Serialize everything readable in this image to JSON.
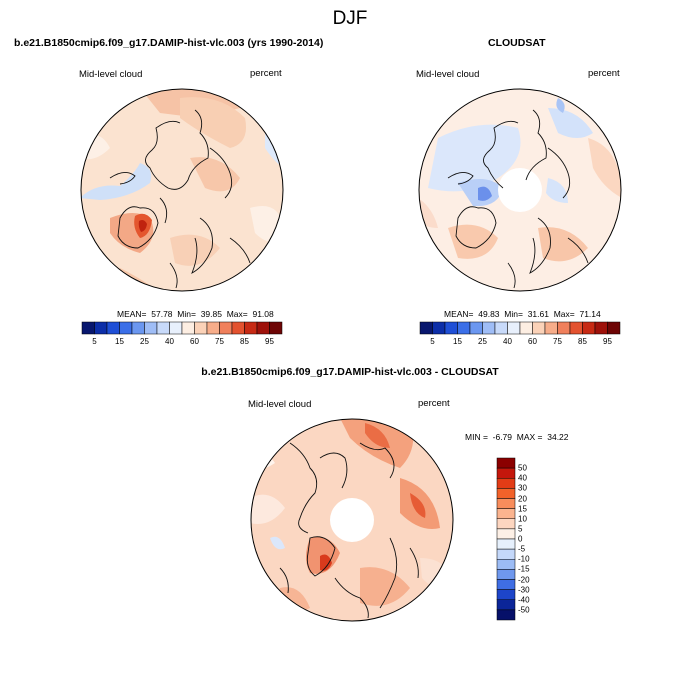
{
  "title": "DJF",
  "panels": {
    "left": {
      "title": "b.e21.B1850cmip6.f09_g17.DAMIP-hist-vlc.003 (yrs 1990-2014)",
      "variable": "Mid-level cloud",
      "units": "percent",
      "stats": {
        "mean_label": "MEAN=",
        "mean": "57.78",
        "min_label": "Min=",
        "min": "39.85",
        "max_label": "Max=",
        "max": "91.08"
      }
    },
    "right": {
      "title": "CLOUDSAT",
      "variable": "Mid-level cloud",
      "units": "percent",
      "stats": {
        "mean_label": "MEAN=",
        "mean": "49.83",
        "min_label": "Min=",
        "min": "31.61",
        "max_label": "Max=",
        "max": "71.14"
      }
    },
    "diff": {
      "title": "b.e21.B1850cmip6.f09_g17.DAMIP-hist-vlc.003 - CLOUDSAT",
      "variable": "Mid-level cloud",
      "units": "percent",
      "stats": {
        "min_label": "MIN =",
        "min": "-6.79",
        "max_label": "MAX =",
        "max": "34.22"
      }
    }
  },
  "colorbar_abs": {
    "labels": [
      "5",
      "15",
      "25",
      "40",
      "60",
      "75",
      "85",
      "95"
    ],
    "colors": [
      "#08176e",
      "#0c2ea8",
      "#1f4fd6",
      "#3b6fe8",
      "#6b97f0",
      "#9fbdf6",
      "#c8dafa",
      "#e8f0fc",
      "#fdeee2",
      "#fbd2b8",
      "#f7ad8a",
      "#f0805c",
      "#e3522f",
      "#c72a14",
      "#9e110a",
      "#6e0505"
    ]
  },
  "colorbar_diff": {
    "labels": [
      "50",
      "40",
      "30",
      "20",
      "15",
      "10",
      "5",
      "0",
      "-5",
      "-10",
      "-15",
      "-20",
      "-30",
      "-40",
      "-50"
    ],
    "colors": [
      "#8b0000",
      "#c4170c",
      "#e23c16",
      "#f2622a",
      "#f88d5c",
      "#fbb48f",
      "#fdd6c0",
      "#fdf0e6",
      "#e6f0fc",
      "#c4d8fa",
      "#9cbcf5",
      "#6f98ee",
      "#3f6ee4",
      "#1d45c9",
      "#0b2598",
      "#061069"
    ]
  },
  "map_colors": {
    "ocean_base": "#fbe7d8",
    "coast": "#111111"
  }
}
